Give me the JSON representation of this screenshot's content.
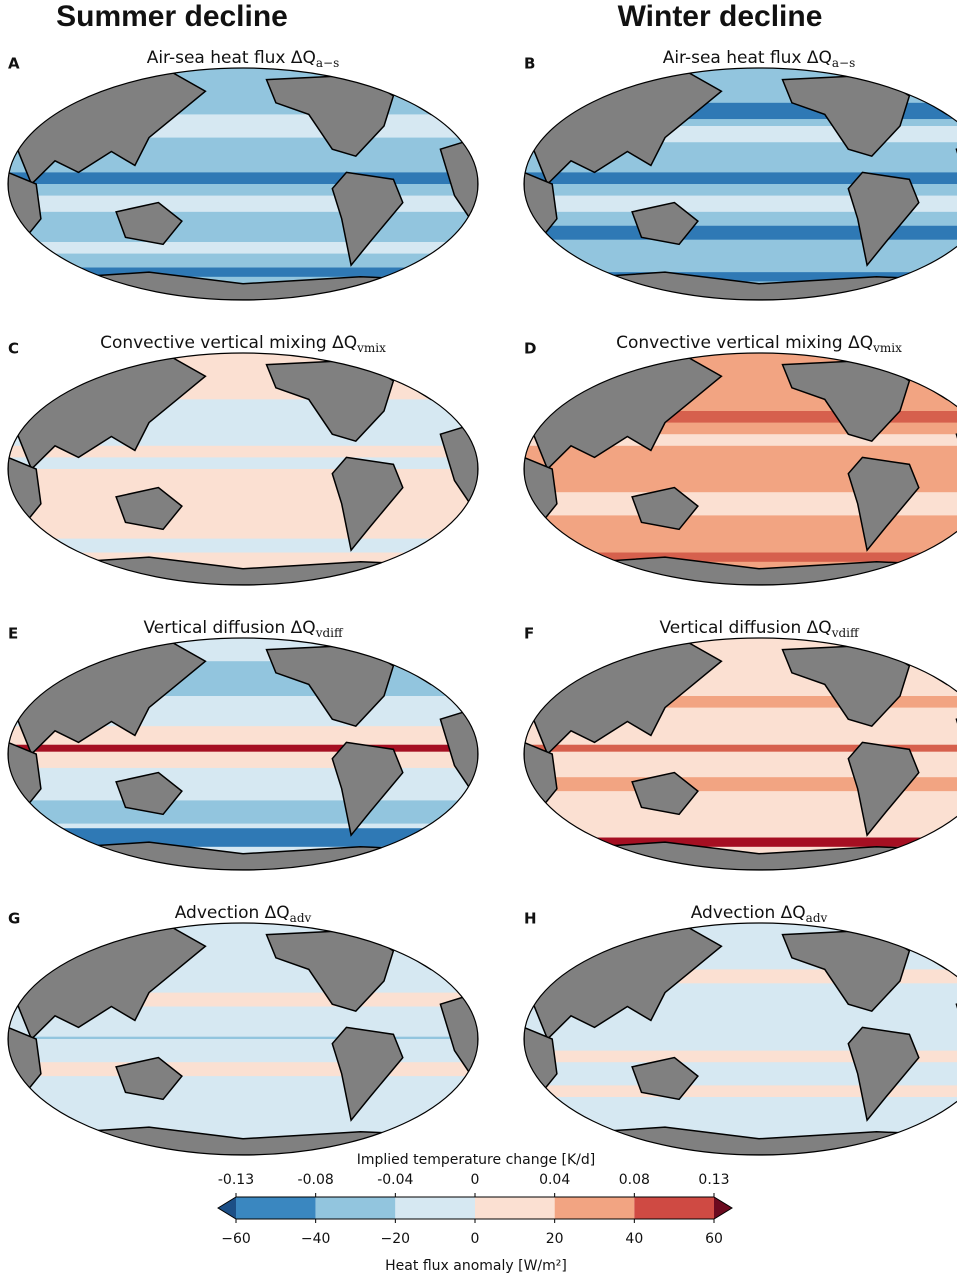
{
  "columns": [
    "Summer decline",
    "Winter decline"
  ],
  "panels": [
    {
      "letter": "A",
      "title": "Air-sea heat flux ΔQ",
      "subscript": "a−s"
    },
    {
      "letter": "B",
      "title": "Air-sea heat flux ΔQ",
      "subscript": "a−s"
    },
    {
      "letter": "C",
      "title": "Convective vertical mixing ΔQ",
      "subscript": "vmix"
    },
    {
      "letter": "D",
      "title": "Convective vertical mixing ΔQ",
      "subscript": "vmix"
    },
    {
      "letter": "E",
      "title": "Vertical diffusion ΔQ",
      "subscript": "vdiff"
    },
    {
      "letter": "F",
      "title": "Vertical diffusion ΔQ",
      "subscript": "vdiff"
    },
    {
      "letter": "G",
      "title": "Advection ΔQ",
      "subscript": "adv"
    },
    {
      "letter": "H",
      "title": "Advection ΔQ",
      "subscript": "adv"
    }
  ],
  "colorbar": {
    "top_label": "Implied temperature change [K/d]",
    "top_ticks": [
      -0.13,
      -0.08,
      -0.04,
      0,
      0.04,
      0.08,
      0.13
    ],
    "bottom_label": "Heat flux anomaly [W/m²]",
    "bottom_ticks": [
      {
        "value": -60,
        "label": "−60"
      },
      {
        "value": -40,
        "label": "−40"
      },
      {
        "value": -20,
        "label": "−20"
      },
      0,
      20,
      40,
      60
    ],
    "colors": [
      "#3a87c0",
      "#92c5de",
      "#d6e8f2",
      "#fbe0d2",
      "#f2a482",
      "#cf4a43"
    ],
    "extend_colors": [
      "#1c4f86",
      "#6b0a1f"
    ]
  }
}
